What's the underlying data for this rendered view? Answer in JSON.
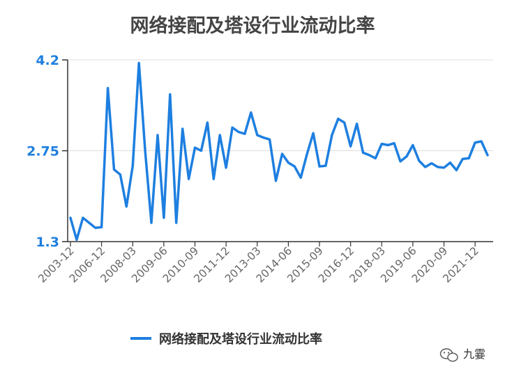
{
  "chart_data": {
    "type": "line",
    "title": "网络接配及塔设行业流动比率",
    "xlabel": "",
    "ylabel": "",
    "ylim": [
      1.3,
      4.2
    ],
    "yticks": [
      "1.3",
      "2.75",
      "4.2"
    ],
    "grid": true,
    "legend_position": "bottom",
    "color": "#1e7fe0",
    "xtick_labels": [
      "2003-12",
      "2006-12",
      "2008-03",
      "2009-06",
      "2010-09",
      "2011-12",
      "2013-03",
      "2014-06",
      "2015-09",
      "2016-12",
      "2018-03",
      "2019-06",
      "2020-09",
      "2021-12"
    ],
    "series": [
      {
        "name": "网络接配及塔设行业流动比率",
        "values": [
          1.68,
          1.33,
          1.68,
          1.6,
          1.52,
          1.53,
          3.75,
          2.45,
          2.37,
          1.86,
          2.51,
          4.15,
          2.75,
          1.6,
          3.0,
          1.68,
          3.65,
          1.6,
          3.1,
          2.3,
          2.8,
          2.75,
          3.2,
          2.3,
          3.0,
          2.48,
          3.12,
          3.05,
          3.02,
          3.36,
          3.0,
          2.96,
          2.93,
          2.27,
          2.7,
          2.56,
          2.5,
          2.32,
          2.7,
          3.03,
          2.5,
          2.51,
          3.0,
          3.26,
          3.2,
          2.82,
          3.18,
          2.72,
          2.68,
          2.63,
          2.86,
          2.84,
          2.87,
          2.58,
          2.66,
          2.84,
          2.59,
          2.49,
          2.55,
          2.49,
          2.48,
          2.56,
          2.44,
          2.62,
          2.63,
          2.88,
          2.9,
          2.68
        ]
      }
    ]
  },
  "watermark": {
    "text": "九霎",
    "icon": "wechat-icon"
  }
}
